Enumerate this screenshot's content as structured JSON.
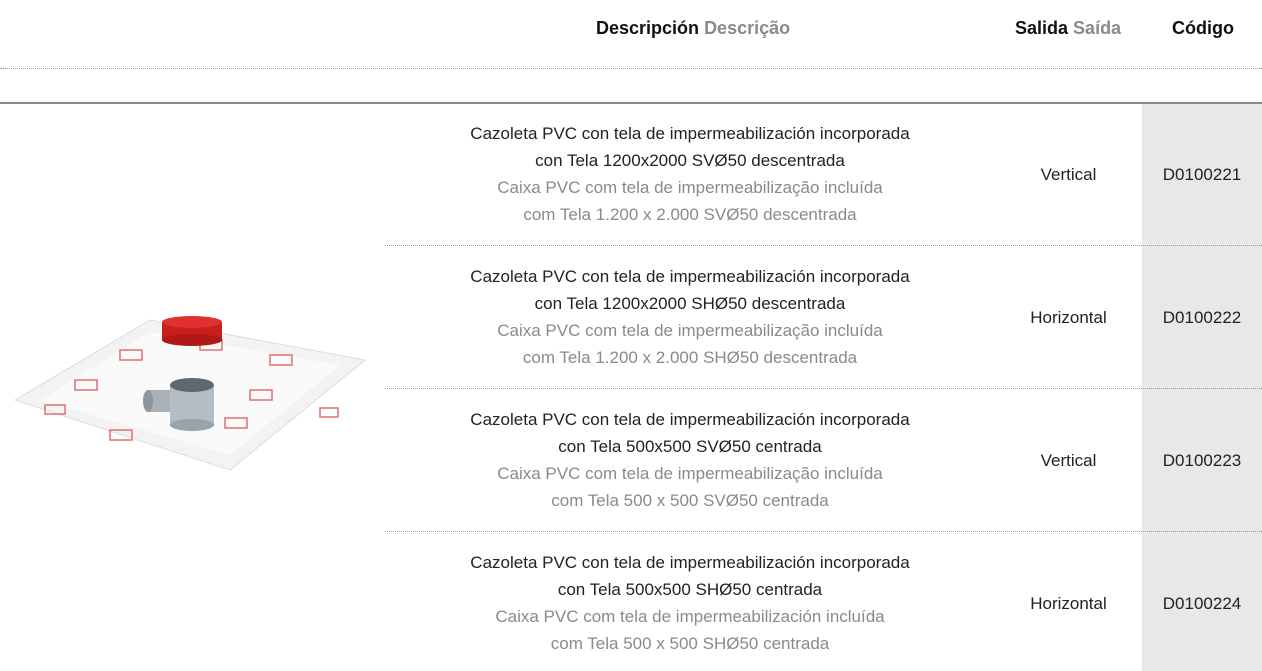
{
  "header": {
    "description_es": "Descripción",
    "description_pt": "Descrição",
    "outlet_es": "Salida",
    "outlet_pt": "Saída",
    "code": "Código"
  },
  "rows": [
    {
      "es": [
        "Cazoleta PVC con tela de impermeabilización incorporada",
        "con Tela 1200x2000 SVØ50 descentrada"
      ],
      "pt": [
        "Caixa PVC com tela de impermeabilização incluída",
        "com Tela 1.200 x 2.000 SVØ50 descentrada"
      ],
      "outlet": "Vertical",
      "code": "D0100221"
    },
    {
      "es": [
        "Cazoleta PVC con tela de impermeabilización incorporada",
        "con Tela 1200x2000 SHØ50 descentrada"
      ],
      "pt": [
        "Caixa PVC com tela de impermeabilização incluída",
        "com Tela 1.200 x 2.000 SHØ50 descentrada"
      ],
      "outlet": "Horizontal",
      "code": "D0100222"
    },
    {
      "es": [
        "Cazoleta PVC con tela de impermeabilización incorporada",
        "con Tela 500x500 SVØ50 centrada"
      ],
      "pt": [
        "Caixa PVC com tela de impermeabilização incluída",
        "com Tela 500 x 500 SVØ50 centrada"
      ],
      "outlet": "Vertical",
      "code": "D0100223"
    },
    {
      "es": [
        "Cazoleta PVC con tela de impermeabilización incorporada",
        "con Tela 500x500 SHØ50 centrada"
      ],
      "pt": [
        "Caixa PVC com tela de impermeabilización incluída",
        "com Tela 500 x 500 SHØ50 centrada"
      ],
      "outlet": "Horizontal",
      "code": "D0100224"
    }
  ]
}
